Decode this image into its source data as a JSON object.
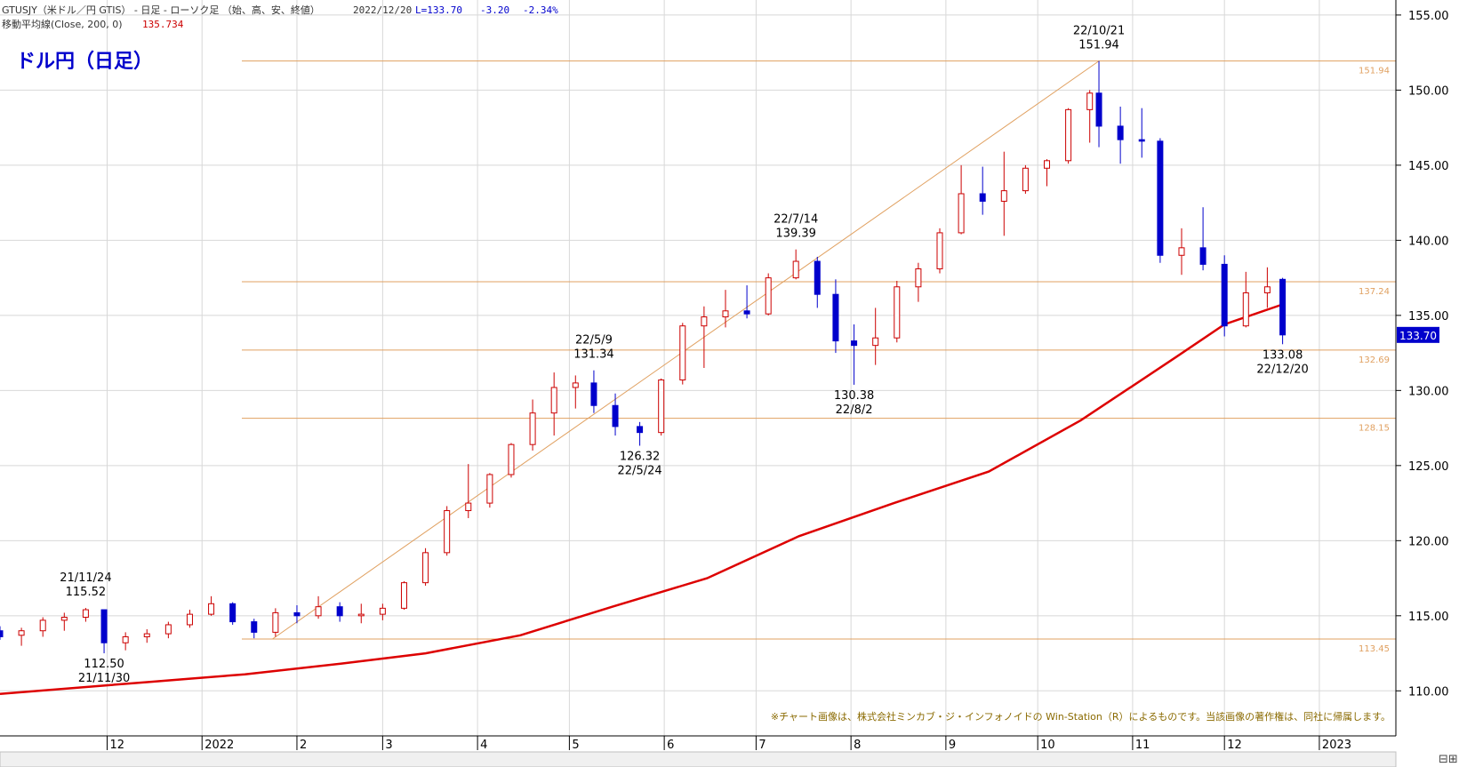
{
  "header": {
    "line1_symbol": "GTUSJY（米ドル／円 GTIS） - 日足 - ローソク足 （始、高、安、終値）",
    "line1_date": "2022/12/20",
    "line1_last": "L=133.70",
    "line1_change": "-3.20",
    "line1_pct": "-2.34%",
    "line2_label": "移動平均線(Close, 200, 0)",
    "line2_value": "135.734"
  },
  "chart_title": "ドル円（日足）",
  "copyright": "※チャート画像は、株式会社ミンカブ・ジ・インフォノイドの Win-Station（R）によるものです。当該画像の著作権は、同社に帰属します。",
  "colors": {
    "up": "#cc0000",
    "down": "#0000cc",
    "ma": "#dd0000",
    "level": "#e0a060",
    "grid": "#d8d8d8",
    "price_tag": "#0000cc"
  },
  "chart_data": {
    "type": "candlestick",
    "ylim": [
      107,
      156
    ],
    "y_ticks": [
      "155.00",
      "150.00",
      "145.00",
      "140.00",
      "135.00",
      "130.00",
      "125.00",
      "120.00",
      "115.00",
      "110.00"
    ],
    "y_tick_values": [
      155,
      150,
      145,
      140,
      135,
      130,
      125,
      120,
      115,
      110
    ],
    "x_ticks": [
      "12",
      "2022",
      "2",
      "3",
      "4",
      "5",
      "6",
      "7",
      "8",
      "9",
      "10",
      "11",
      "12",
      "2023"
    ],
    "x_tick_dates": [
      "2021-12-01",
      "2022-01-01",
      "2022-02-01",
      "2022-03-01",
      "2022-04-01",
      "2022-05-01",
      "2022-06-01",
      "2022-07-01",
      "2022-08-01",
      "2022-09-01",
      "2022-10-01",
      "2022-11-01",
      "2022-12-01",
      "2023-01-01"
    ],
    "x_range": [
      "2021-10-27",
      "2023-01-26"
    ],
    "last_price": "133.70",
    "levels": [
      {
        "value": 151.94,
        "label": "151.94",
        "from": "2022-01-14"
      },
      {
        "value": 137.24,
        "label": "137.24",
        "from": "2022-01-14"
      },
      {
        "value": 132.69,
        "label": "132.69",
        "from": "2022-01-14"
      },
      {
        "value": 128.15,
        "label": "128.15",
        "from": "2022-01-14"
      },
      {
        "value": 113.45,
        "label": "113.45",
        "from": "2022-01-14"
      }
    ],
    "trendlines": [
      {
        "from": {
          "date": "2022-01-24",
          "value": 113.45
        },
        "to": {
          "date": "2022-10-21",
          "value": 151.94
        }
      }
    ],
    "annotations": [
      {
        "date": "2021-11-24",
        "value": 115.52,
        "text": [
          "21/11/24",
          "115.52"
        ],
        "pos": "above"
      },
      {
        "date": "2021-11-30",
        "value": 112.5,
        "text": [
          "112.50",
          "21/11/30"
        ],
        "pos": "below"
      },
      {
        "date": "2022-05-09",
        "value": 131.34,
        "text": [
          "22/5/9",
          "131.34"
        ],
        "pos": "above"
      },
      {
        "date": "2022-05-24",
        "value": 126.32,
        "text": [
          "126.32",
          "22/5/24"
        ],
        "pos": "below"
      },
      {
        "date": "2022-07-14",
        "value": 139.39,
        "text": [
          "22/7/14",
          "139.39"
        ],
        "pos": "above"
      },
      {
        "date": "2022-08-02",
        "value": 130.38,
        "text": [
          "130.38",
          "22/8/2"
        ],
        "pos": "below"
      },
      {
        "date": "2022-10-21",
        "value": 151.94,
        "text": [
          "22/10/21",
          "151.94"
        ],
        "pos": "above"
      },
      {
        "date": "2022-12-20",
        "value": 133.08,
        "text": [
          "133.08",
          "22/12/20"
        ],
        "pos": "below"
      }
    ],
    "series": [
      {
        "name": "移動平均線(Close, 200, 0)",
        "type": "line",
        "points": [
          [
            "2021-10-27",
            109.8
          ],
          [
            "2021-12-15",
            110.6
          ],
          [
            "2022-01-15",
            111.1
          ],
          [
            "2022-02-15",
            111.8
          ],
          [
            "2022-03-15",
            112.5
          ],
          [
            "2022-04-15",
            113.7
          ],
          [
            "2022-05-15",
            115.6
          ],
          [
            "2022-06-15",
            117.5
          ],
          [
            "2022-07-15",
            120.3
          ],
          [
            "2022-08-15",
            122.5
          ],
          [
            "2022-09-15",
            124.6
          ],
          [
            "2022-10-15",
            128.0
          ],
          [
            "2022-11-15",
            132.2
          ],
          [
            "2022-12-01",
            134.4
          ],
          [
            "2022-12-20",
            135.73
          ]
        ]
      },
      {
        "name": "USDJPY",
        "type": "candlestick",
        "comment": "fields: date, open, high, low, close",
        "ohlc": [
          [
            "2021-10-27",
            114.0,
            114.3,
            113.4,
            113.6
          ],
          [
            "2021-11-03",
            113.7,
            114.2,
            113.0,
            114.0
          ],
          [
            "2021-11-10",
            114.0,
            114.9,
            113.6,
            114.7
          ],
          [
            "2021-11-17",
            114.7,
            115.2,
            114.0,
            114.9
          ],
          [
            "2021-11-24",
            114.9,
            115.52,
            114.6,
            115.4
          ],
          [
            "2021-11-30",
            115.4,
            115.3,
            112.5,
            113.2
          ],
          [
            "2021-12-07",
            113.2,
            113.9,
            112.7,
            113.6
          ],
          [
            "2021-12-14",
            113.6,
            114.1,
            113.2,
            113.8
          ],
          [
            "2021-12-21",
            113.8,
            114.6,
            113.5,
            114.4
          ],
          [
            "2021-12-28",
            114.4,
            115.4,
            114.2,
            115.1
          ],
          [
            "2022-01-04",
            115.1,
            116.3,
            115.0,
            115.8
          ],
          [
            "2022-01-11",
            115.8,
            115.9,
            114.4,
            114.6
          ],
          [
            "2022-01-18",
            114.6,
            114.8,
            113.5,
            113.9
          ],
          [
            "2022-01-25",
            113.9,
            115.5,
            113.6,
            115.2
          ],
          [
            "2022-02-01",
            115.2,
            115.7,
            114.5,
            115.0
          ],
          [
            "2022-02-08",
            115.0,
            116.3,
            114.8,
            115.6
          ],
          [
            "2022-02-15",
            115.6,
            115.9,
            114.6,
            115.0
          ],
          [
            "2022-02-22",
            115.0,
            115.8,
            114.5,
            115.1
          ],
          [
            "2022-03-01",
            115.1,
            115.8,
            114.7,
            115.5
          ],
          [
            "2022-03-08",
            115.5,
            117.3,
            115.4,
            117.2
          ],
          [
            "2022-03-15",
            117.2,
            119.5,
            117.0,
            119.2
          ],
          [
            "2022-03-22",
            119.2,
            122.3,
            119.0,
            122.0
          ],
          [
            "2022-03-29",
            122.0,
            125.1,
            121.5,
            122.5
          ],
          [
            "2022-04-05",
            122.5,
            124.5,
            122.2,
            124.4
          ],
          [
            "2022-04-12",
            124.4,
            126.5,
            124.2,
            126.4
          ],
          [
            "2022-04-19",
            126.4,
            129.4,
            126.0,
            128.5
          ],
          [
            "2022-04-26",
            128.5,
            131.2,
            127.0,
            130.2
          ],
          [
            "2022-05-03",
            130.2,
            131.0,
            128.8,
            130.5
          ],
          [
            "2022-05-09",
            130.5,
            131.34,
            128.5,
            129.0
          ],
          [
            "2022-05-16",
            129.0,
            129.8,
            127.0,
            127.6
          ],
          [
            "2022-05-24",
            127.6,
            127.9,
            126.32,
            127.2
          ],
          [
            "2022-05-31",
            127.2,
            130.8,
            127.0,
            130.7
          ],
          [
            "2022-06-07",
            130.7,
            134.5,
            130.4,
            134.3
          ],
          [
            "2022-06-14",
            134.3,
            135.6,
            131.5,
            134.9
          ],
          [
            "2022-06-21",
            134.9,
            136.7,
            134.2,
            135.3
          ],
          [
            "2022-06-28",
            135.3,
            137.0,
            134.8,
            135.1
          ],
          [
            "2022-07-05",
            135.1,
            137.8,
            135.0,
            137.5
          ],
          [
            "2022-07-14",
            137.5,
            139.39,
            137.4,
            138.6
          ],
          [
            "2022-07-21",
            138.6,
            138.9,
            135.5,
            136.4
          ],
          [
            "2022-07-27",
            136.4,
            137.4,
            132.5,
            133.3
          ],
          [
            "2022-08-02",
            133.3,
            134.4,
            130.38,
            133.0
          ],
          [
            "2022-08-09",
            133.0,
            135.5,
            131.7,
            133.5
          ],
          [
            "2022-08-16",
            133.5,
            137.3,
            133.2,
            136.9
          ],
          [
            "2022-08-23",
            136.9,
            138.5,
            135.9,
            138.1
          ],
          [
            "2022-08-30",
            138.1,
            140.8,
            137.8,
            140.5
          ],
          [
            "2022-09-06",
            140.5,
            145.0,
            140.4,
            143.1
          ],
          [
            "2022-09-13",
            143.1,
            144.9,
            141.7,
            142.6
          ],
          [
            "2022-09-20",
            142.6,
            145.9,
            140.3,
            143.3
          ],
          [
            "2022-09-27",
            143.3,
            145.0,
            143.1,
            144.8
          ],
          [
            "2022-10-04",
            144.8,
            145.4,
            143.6,
            145.3
          ],
          [
            "2022-10-11",
            145.3,
            148.8,
            145.1,
            148.7
          ],
          [
            "2022-10-18",
            148.7,
            150.0,
            146.5,
            149.8
          ],
          [
            "2022-10-21",
            149.8,
            151.94,
            146.2,
            147.6
          ],
          [
            "2022-10-28",
            147.6,
            148.9,
            145.1,
            146.7
          ],
          [
            "2022-11-04",
            146.7,
            148.8,
            145.5,
            146.6
          ],
          [
            "2022-11-10",
            146.6,
            146.8,
            138.5,
            139.0
          ],
          [
            "2022-11-17",
            139.0,
            140.8,
            137.7,
            139.5
          ],
          [
            "2022-11-24",
            139.5,
            142.2,
            138.0,
            138.4
          ],
          [
            "2022-12-01",
            138.4,
            139.0,
            133.6,
            134.3
          ],
          [
            "2022-12-08",
            134.3,
            137.9,
            134.2,
            136.5
          ],
          [
            "2022-12-15",
            136.5,
            138.2,
            135.5,
            136.9
          ],
          [
            "2022-12-20",
            137.4,
            137.5,
            133.08,
            133.7
          ]
        ]
      }
    ]
  }
}
